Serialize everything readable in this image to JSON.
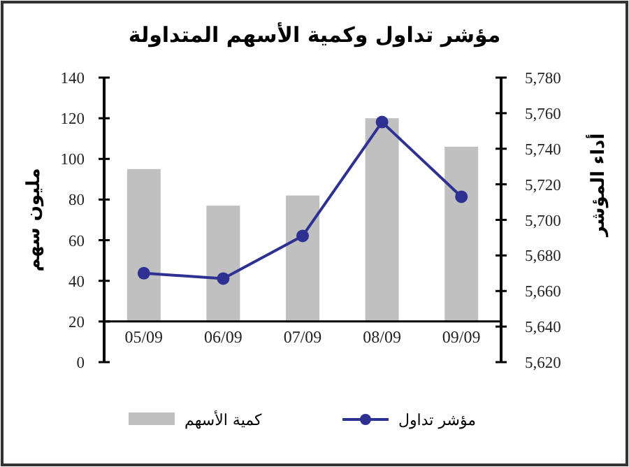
{
  "chart_data": {
    "type": "bar",
    "title": "مؤشر تداول وكمية الأسهم المتداولة",
    "ylabel": "مليون سهم",
    "y2label": "أداء المؤشر",
    "categories": [
      "05/09",
      "06/09",
      "07/09",
      "08/09",
      "09/09"
    ],
    "series": [
      {
        "name": "كمية الأسهم",
        "color": "#c0c0c0",
        "base": [
          20,
          20,
          20,
          20,
          20
        ],
        "values": [
          75,
          57,
          62,
          100,
          86
        ]
      },
      {
        "name": "مؤشر تداول",
        "type": "line",
        "axis": "y2",
        "color": "#2e3192",
        "marker": "circle",
        "values": [
          5670,
          5667,
          5691,
          5755,
          5713
        ]
      }
    ],
    "ylim": [
      0,
      140
    ],
    "yticks": [
      0,
      20,
      40,
      60,
      80,
      100,
      120,
      140
    ],
    "y2lim": [
      5620,
      5780
    ],
    "y2ticks": [
      {
        "value": 5620,
        "label": "5,620"
      },
      {
        "value": 5640,
        "label": "5,640"
      },
      {
        "value": 5660,
        "label": "5,660"
      },
      {
        "value": 5680,
        "label": "5,680"
      },
      {
        "value": 5700,
        "label": "5,700"
      },
      {
        "value": 5720,
        "label": "5,720"
      },
      {
        "value": 5740,
        "label": "5,740"
      },
      {
        "value": 5760,
        "label": "5,760"
      },
      {
        "value": 5780,
        "label": "5,780"
      }
    ],
    "legend": "bottom",
    "grid": false
  }
}
